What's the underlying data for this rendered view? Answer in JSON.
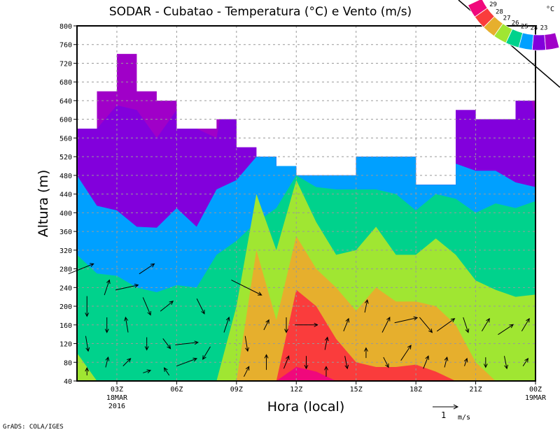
{
  "chart_data": {
    "type": "area",
    "title": "SODAR - Cubatao - Temperatura (°C) e Vento (m/s)",
    "xlabel": "Hora (local)",
    "ylabel": "Altura (m)",
    "ylim": [
      40,
      800
    ],
    "yticks": [
      40,
      80,
      120,
      160,
      200,
      240,
      280,
      320,
      360,
      400,
      440,
      480,
      520,
      560,
      600,
      640,
      680,
      720,
      760,
      800
    ],
    "xlim_hours": [
      1,
      24
    ],
    "xticks": [
      {
        "hour": 3,
        "label": "03Z",
        "sub1": "18MAR",
        "sub2": "2016"
      },
      {
        "hour": 6,
        "label": "06Z"
      },
      {
        "hour": 9,
        "label": "09Z"
      },
      {
        "hour": 12,
        "label": "12Z"
      },
      {
        "hour": 15,
        "label": "15Z"
      },
      {
        "hour": 18,
        "label": "18Z"
      },
      {
        "hour": 21,
        "label": "21Z"
      },
      {
        "hour": 24,
        "label": "00Z",
        "sub1": "19MAR"
      }
    ],
    "grid": true,
    "hours": [
      1,
      2,
      3,
      4,
      5,
      6,
      7,
      8,
      9,
      10,
      11,
      12,
      13,
      14,
      15,
      16,
      17,
      18,
      19,
      20,
      21,
      22,
      23,
      24
    ],
    "data_top_m": [
      580,
      660,
      740,
      660,
      640,
      580,
      580,
      600,
      540,
      520,
      500,
      480,
      480,
      480,
      520,
      520,
      520,
      460,
      460,
      620,
      600,
      600,
      640,
      640
    ],
    "isotherm_heights_m": {
      "23": [
        600,
        580,
        630,
        620,
        560,
        620,
        580,
        560,
        800,
        800,
        800,
        800,
        800,
        800,
        800,
        800,
        800,
        800,
        800,
        800,
        620,
        800,
        800,
        600
      ],
      "24": [
        480,
        415,
        405,
        370,
        368,
        410,
        370,
        450,
        470,
        520,
        520,
        520,
        520,
        520,
        520,
        520,
        520,
        520,
        520,
        505,
        490,
        490,
        465,
        455
      ],
      "25": [
        310,
        270,
        265,
        240,
        230,
        245,
        240,
        310,
        340,
        380,
        410,
        480,
        455,
        450,
        450,
        450,
        440,
        405,
        440,
        430,
        400,
        420,
        410,
        425
      ],
      "26": [
        100,
        40,
        40,
        40,
        40,
        40,
        40,
        40,
        200,
        440,
        320,
        470,
        380,
        310,
        320,
        370,
        310,
        310,
        345,
        310,
        255,
        235,
        220,
        225
      ],
      "27": [
        40,
        40,
        40,
        40,
        40,
        40,
        40,
        40,
        40,
        320,
        170,
        350,
        280,
        240,
        190,
        240,
        210,
        210,
        200,
        160,
        80,
        40,
        40,
        40
      ],
      "28": [
        40,
        40,
        40,
        40,
        40,
        40,
        40,
        40,
        40,
        40,
        40,
        235,
        200,
        130,
        80,
        70,
        70,
        75,
        60,
        40,
        40,
        40,
        40,
        40
      ],
      "29": [
        40,
        40,
        40,
        40,
        40,
        40,
        40,
        40,
        40,
        40,
        40,
        70,
        60,
        40,
        40,
        40,
        40,
        40,
        40,
        40,
        40,
        40,
        40,
        40
      ]
    },
    "legend": {
      "unit": "°C",
      "placement": "top-right",
      "labels": [
        "29",
        "28",
        "27",
        "26",
        "25",
        "24",
        "23"
      ],
      "colors": [
        "#f0087c",
        "#fa3c3c",
        "#e6af2d",
        "#a0e632",
        "#00d28c",
        "#00a0ff",
        "#8200dc",
        "#a000c8"
      ]
    },
    "wind_reference": {
      "value": "1",
      "unit": "m/s"
    },
    "wind_vectors_hour_height_u_v": [
      [
        1.2,
        280,
        1.0,
        0.4
      ],
      [
        1.5,
        200,
        0,
        -0.8
      ],
      [
        1.5,
        120,
        0.1,
        -0.6
      ],
      [
        1.5,
        60,
        0,
        0.3
      ],
      [
        2.5,
        240,
        0.2,
        0.6
      ],
      [
        2.5,
        160,
        0,
        -0.6
      ],
      [
        2.5,
        80,
        0.1,
        0.4
      ],
      [
        3.5,
        240,
        0.9,
        0.2
      ],
      [
        3.5,
        160,
        -0.1,
        0.6
      ],
      [
        3.5,
        80,
        0.3,
        0.3
      ],
      [
        4.5,
        280,
        0.6,
        0.4
      ],
      [
        4.5,
        200,
        0.3,
        -0.7
      ],
      [
        4.5,
        120,
        0,
        -0.5
      ],
      [
        4.5,
        60,
        0.3,
        0.1
      ],
      [
        5.5,
        200,
        0.5,
        0.4
      ],
      [
        5.5,
        120,
        0.3,
        -0.4
      ],
      [
        5.5,
        60,
        -0.2,
        0.3
      ],
      [
        6.5,
        120,
        0.9,
        0.1
      ],
      [
        6.5,
        80,
        0.8,
        0.3
      ],
      [
        7.2,
        200,
        0.3,
        -0.6
      ],
      [
        7.5,
        100,
        -0.3,
        -0.5
      ],
      [
        8.5,
        160,
        0.2,
        0.6
      ],
      [
        9.5,
        240,
        1.2,
        -0.6
      ],
      [
        9.5,
        120,
        0.1,
        -0.6
      ],
      [
        9.5,
        60,
        0.2,
        0.4
      ],
      [
        10.5,
        160,
        0.2,
        0.4
      ],
      [
        10.5,
        80,
        0,
        0.6
      ],
      [
        11.5,
        160,
        0,
        -0.6
      ],
      [
        11.5,
        80,
        0.2,
        0.5
      ],
      [
        12.5,
        160,
        0.9,
        0
      ],
      [
        12.5,
        80,
        0,
        -0.5
      ],
      [
        13.5,
        120,
        0.1,
        0.5
      ],
      [
        13.5,
        60,
        0,
        0.4
      ],
      [
        14.5,
        160,
        0.2,
        0.5
      ],
      [
        14.5,
        80,
        0.1,
        -0.5
      ],
      [
        15.5,
        200,
        0.1,
        0.5
      ],
      [
        15.5,
        100,
        0,
        0.4
      ],
      [
        16.5,
        160,
        0.3,
        0.6
      ],
      [
        16.5,
        80,
        0.2,
        -0.4
      ],
      [
        17.5,
        170,
        0.9,
        0.2
      ],
      [
        17.5,
        100,
        0.4,
        0.6
      ],
      [
        18.5,
        160,
        0.5,
        -0.6
      ],
      [
        18.5,
        80,
        0.2,
        0.5
      ],
      [
        19.5,
        160,
        0.7,
        0.5
      ],
      [
        19.5,
        80,
        0.1,
        0.4
      ],
      [
        20.5,
        160,
        0.2,
        -0.6
      ],
      [
        20.5,
        80,
        0.1,
        0.3
      ],
      [
        21.5,
        160,
        0.3,
        0.5
      ],
      [
        21.5,
        80,
        0,
        -0.4
      ],
      [
        22.5,
        150,
        0.6,
        0.4
      ],
      [
        22.5,
        80,
        0.1,
        -0.5
      ],
      [
        23.5,
        160,
        0.3,
        0.5
      ],
      [
        23.5,
        80,
        0.2,
        0.3
      ]
    ]
  },
  "footer": {
    "credit": "GrADS: COLA/IGES"
  }
}
